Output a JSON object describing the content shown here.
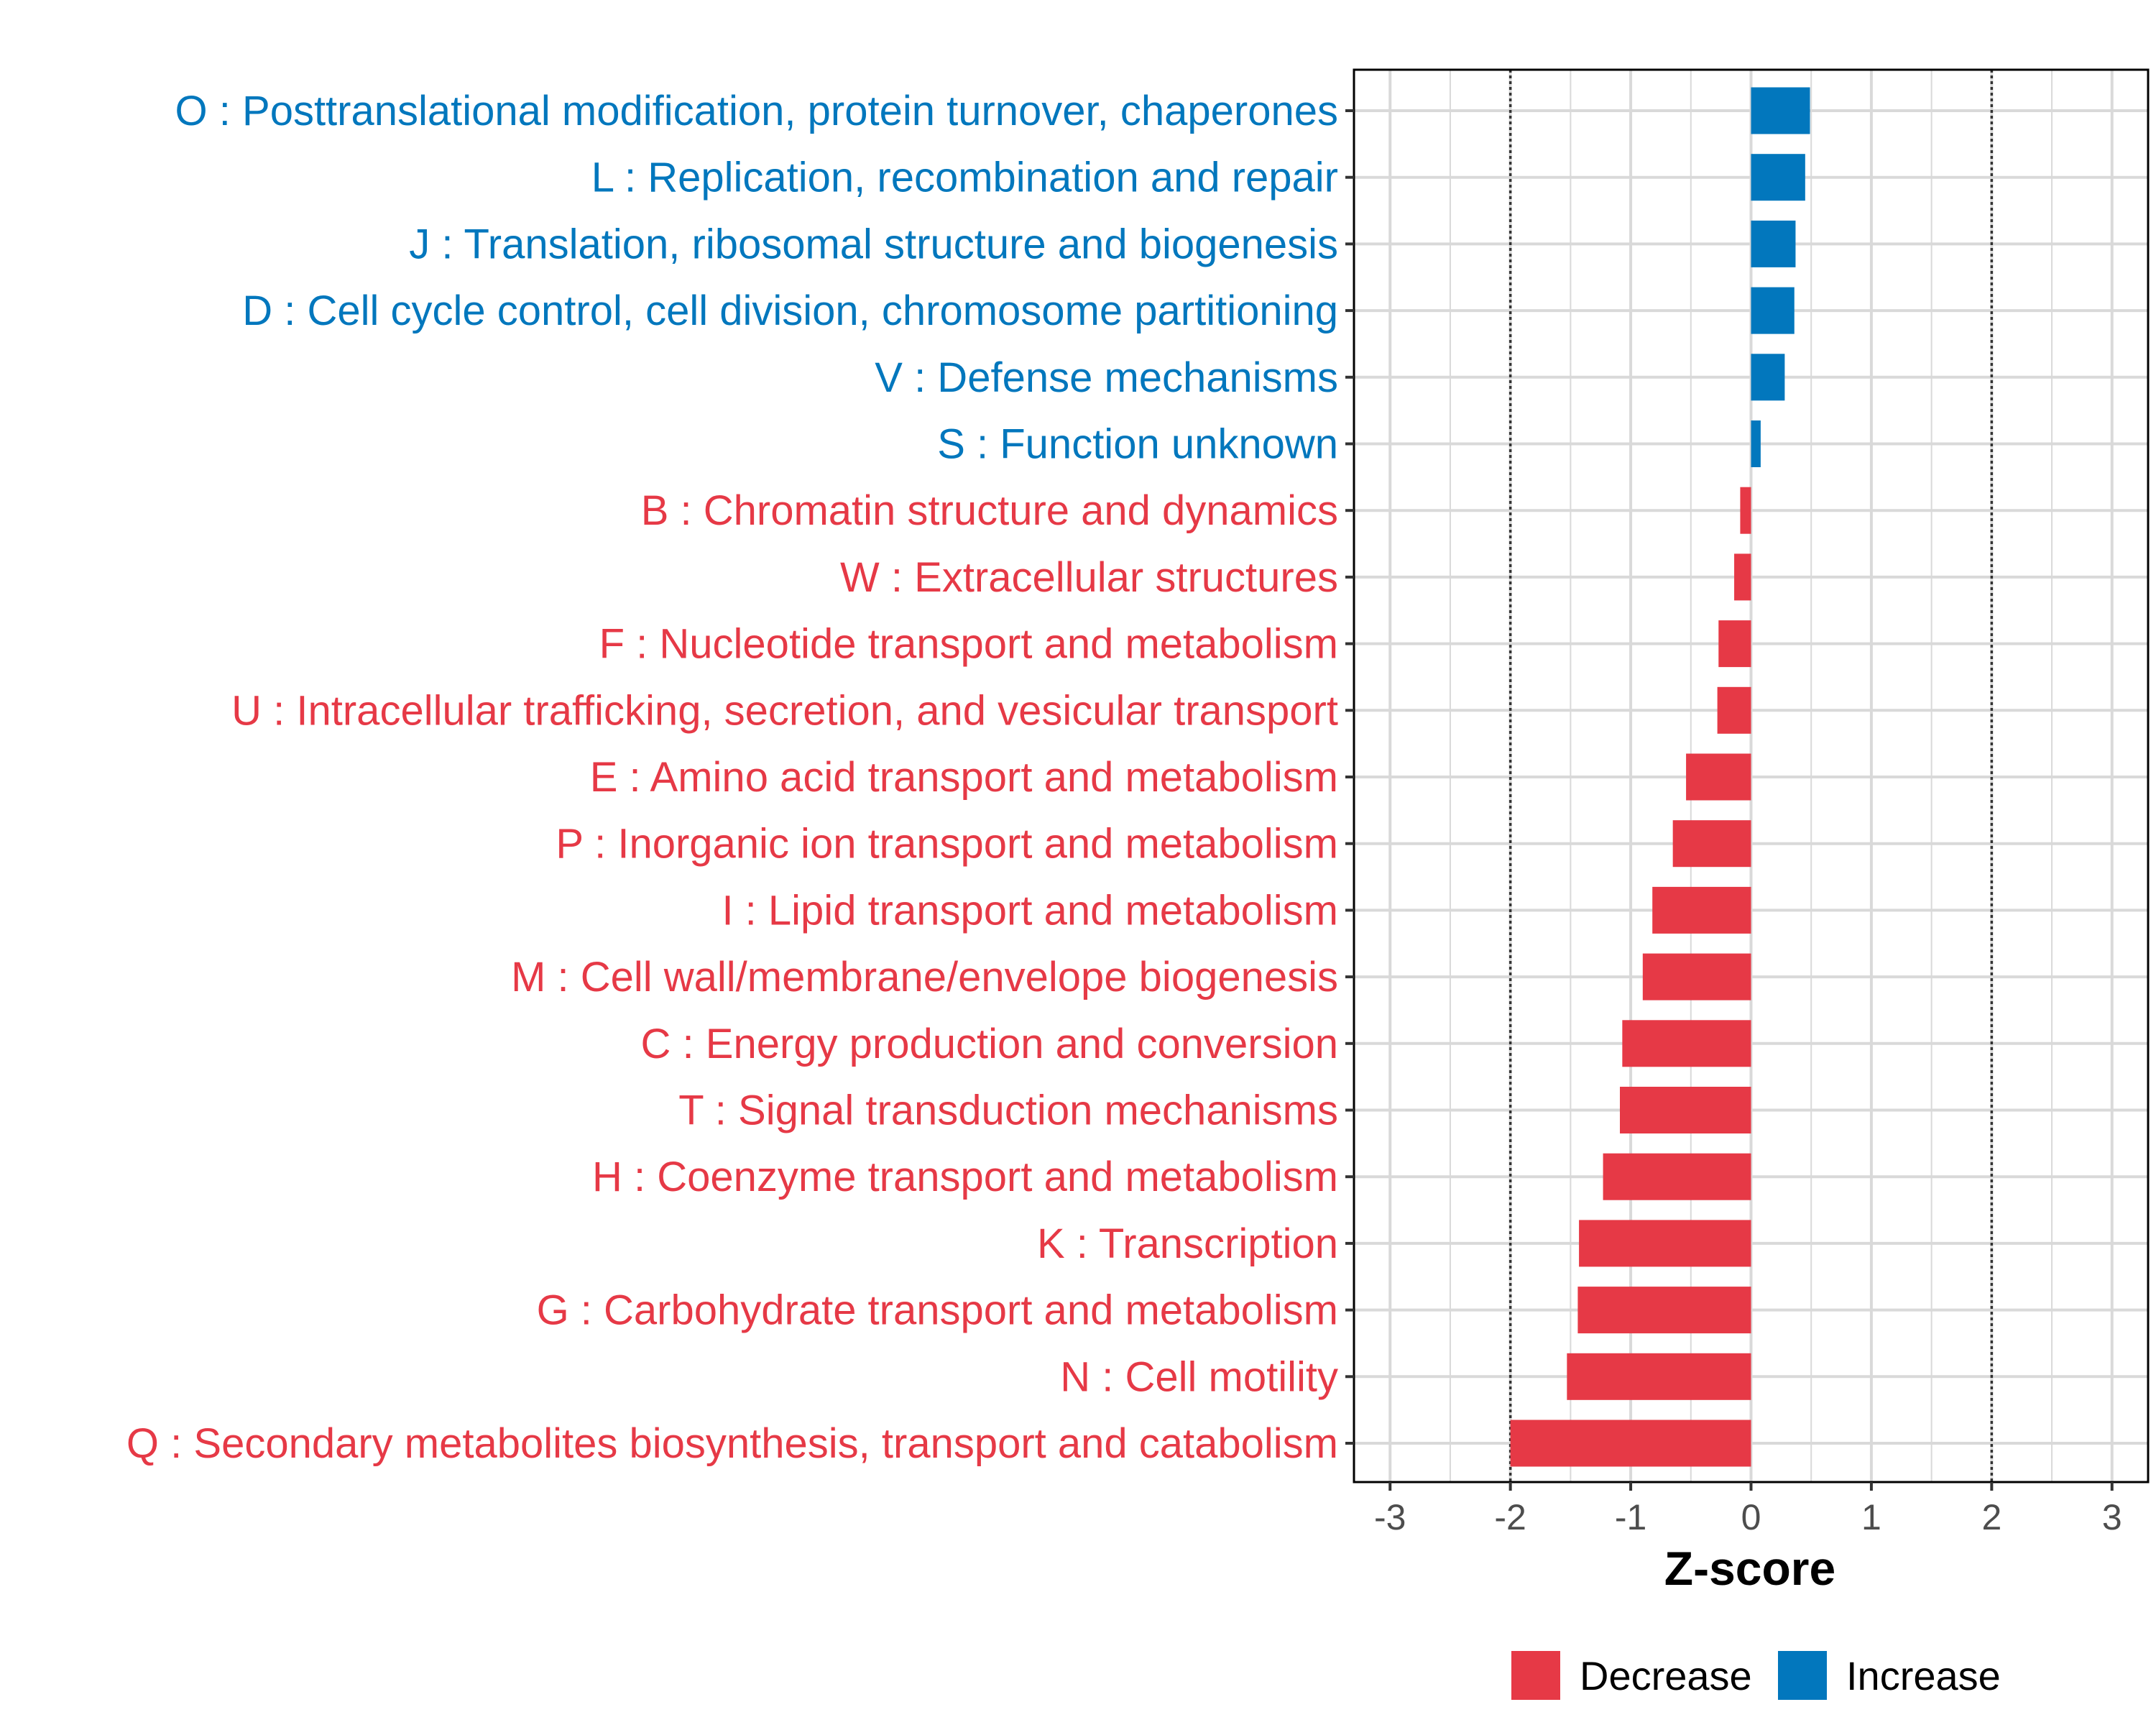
{
  "chart_data": {
    "type": "bar",
    "orientation": "horizontal",
    "xlabel": "Z-score",
    "xlim": [
      -3.3,
      3.3
    ],
    "xticks": [
      -3,
      -2,
      -1,
      0,
      1,
      2,
      3
    ],
    "xtick_labels": [
      "-3",
      "-2",
      "-1",
      "0",
      "1",
      "2",
      "3"
    ],
    "reference_lines": [
      -2,
      2
    ],
    "grid": true,
    "categories": [
      "O : Posttranslational modification, protein turnover, chaperones",
      "L : Replication, recombination and repair",
      "J : Translation, ribosomal structure and biogenesis",
      "D : Cell cycle control, cell division, chromosome partitioning",
      "V : Defense mechanisms",
      "S : Function unknown",
      "B : Chromatin structure and dynamics",
      "W : Extracellular structures",
      "F : Nucleotide transport and metabolism",
      "U : Intracellular trafficking, secretion, and vesicular transport",
      "E : Amino acid transport and metabolism",
      "P : Inorganic ion transport and metabolism",
      "I : Lipid transport and metabolism",
      "M : Cell wall/membrane/envelope biogenesis",
      "C : Energy production and conversion",
      "T : Signal transduction mechanisms",
      "H : Coenzyme transport and metabolism",
      "K : Transcription",
      "G : Carbohydrate transport and metabolism",
      "N : Cell motility",
      "Q : Secondary metabolites biosynthesis, transport and catabolism"
    ],
    "values": [
      0.49,
      0.45,
      0.37,
      0.36,
      0.28,
      0.08,
      -0.09,
      -0.14,
      -0.27,
      -0.28,
      -0.54,
      -0.65,
      -0.82,
      -0.9,
      -1.07,
      -1.09,
      -1.23,
      -1.43,
      -1.44,
      -1.53,
      -2.0
    ],
    "groups": [
      "Increase",
      "Increase",
      "Increase",
      "Increase",
      "Increase",
      "Increase",
      "Decrease",
      "Decrease",
      "Decrease",
      "Decrease",
      "Decrease",
      "Decrease",
      "Decrease",
      "Decrease",
      "Decrease",
      "Decrease",
      "Decrease",
      "Decrease",
      "Decrease",
      "Decrease",
      "Decrease"
    ],
    "legend": {
      "position": "bottom",
      "entries": [
        {
          "label": "Decrease",
          "color": "#E63946"
        },
        {
          "label": "Increase",
          "color": "#0277BD"
        }
      ]
    },
    "colors": {
      "Decrease": "#E63946",
      "Increase": "#0277BD"
    }
  }
}
